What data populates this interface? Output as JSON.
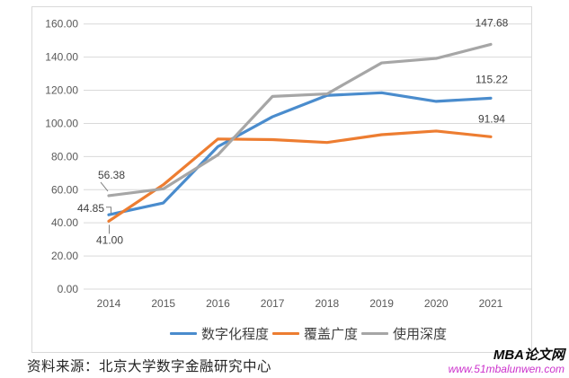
{
  "chart_data": {
    "type": "line",
    "title": "",
    "xlabel": "",
    "ylabel": "",
    "categories": [
      "2014",
      "2015",
      "2016",
      "2017",
      "2018",
      "2019",
      "2020",
      "2021"
    ],
    "series": [
      {
        "name": "数字化程度",
        "color": "#4a8ccd",
        "values": [
          44.85,
          52.0,
          86.0,
          104.0,
          116.9,
          118.5,
          113.3,
          115.22
        ]
      },
      {
        "name": "覆盖广度",
        "color": "#ed7d31",
        "values": [
          41.0,
          63.0,
          90.6,
          90.2,
          88.5,
          93.2,
          95.4,
          91.94
        ]
      },
      {
        "name": "使用深度",
        "color": "#a6a6a6",
        "values": [
          56.38,
          60.5,
          81.0,
          116.3,
          117.8,
          136.5,
          139.2,
          147.68
        ]
      }
    ],
    "ylim": [
      0,
      160
    ],
    "y_tick_step": 20,
    "y_tick_labels": [
      "0.00",
      "20.00",
      "40.00",
      "60.00",
      "80.00",
      "100.00",
      "120.00",
      "140.00",
      "160.00"
    ],
    "grid": true,
    "legend_position": "bottom",
    "point_labels": [
      {
        "series": 2,
        "index": 0,
        "text": "56.38"
      },
      {
        "series": 0,
        "index": 0,
        "text": "44.85"
      },
      {
        "series": 1,
        "index": 0,
        "text": "41.00"
      },
      {
        "series": 2,
        "index": 7,
        "text": "147.68"
      },
      {
        "series": 0,
        "index": 7,
        "text": "115.22"
      },
      {
        "series": 1,
        "index": 7,
        "text": "91.94"
      }
    ],
    "colors": {
      "gridline": "#d9d9d9",
      "axis_text": "#595959",
      "label_text": "#404040"
    }
  },
  "footer": {
    "source_text": "资料来源：北京大学数字金融研究中心"
  },
  "watermark": {
    "brand": "MBA论文网",
    "url": "www.51mbalunwen.com",
    "url_color": "#cc33cc"
  }
}
